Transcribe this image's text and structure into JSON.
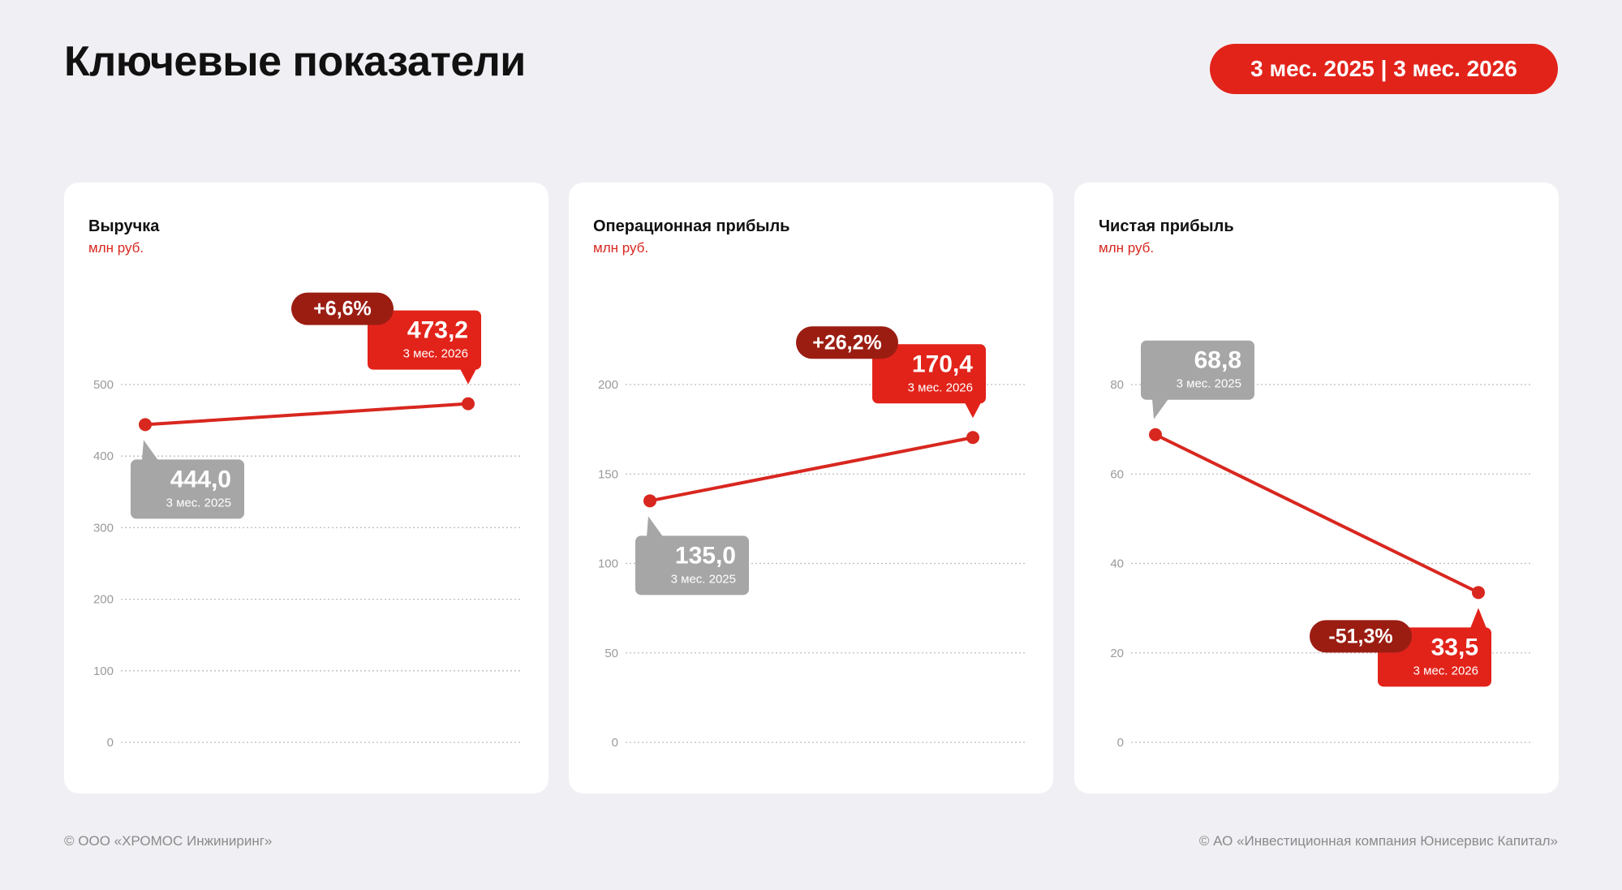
{
  "header": {
    "title": "Ключевые показатели",
    "period": "3 мес. 2025 | 3 мес. 2026"
  },
  "colors": {
    "accent": "#E2231A",
    "change_badge": "#9B1D12",
    "prior_callout": "#A6A6A6",
    "line": "#D8271F"
  },
  "chart_data": [
    {
      "type": "line",
      "title": "Выручка",
      "ylabel": "млн руб.",
      "ylim": [
        0,
        500
      ],
      "yticks": [
        0,
        100,
        200,
        300,
        400,
        500
      ],
      "ytick_labels": [
        "0",
        "100",
        "200",
        "300",
        "400",
        "500"
      ],
      "grid": true,
      "x": [
        "3 мес. 2025",
        "3 мес. 2026"
      ],
      "values": [
        444.0,
        473.2
      ],
      "value_labels": [
        "444,0",
        "473,2"
      ],
      "change": "+6,6%"
    },
    {
      "type": "line",
      "title": "Операционная прибыль",
      "ylabel": "млн руб.",
      "ylim": [
        0,
        200
      ],
      "yticks": [
        0,
        50,
        100,
        150,
        200
      ],
      "ytick_labels": [
        "0",
        "50",
        "100",
        "150",
        "200"
      ],
      "grid": true,
      "x": [
        "3 мес. 2025",
        "3 мес. 2026"
      ],
      "values": [
        135.0,
        170.4
      ],
      "value_labels": [
        "135,0",
        "170,4"
      ],
      "change": "+26,2%"
    },
    {
      "type": "line",
      "title": "Чистая прибыль",
      "ylabel": "млн руб.",
      "ylim": [
        0,
        80
      ],
      "yticks": [
        0,
        20,
        40,
        60,
        80
      ],
      "ytick_labels": [
        "0",
        "20",
        "40",
        "60",
        "80"
      ],
      "grid": true,
      "x": [
        "3 мес. 2025",
        "3 мес. 2026"
      ],
      "values": [
        68.8,
        33.5
      ],
      "value_labels": [
        "68,8",
        "33,5"
      ],
      "change": "-51,3%"
    }
  ],
  "footer": {
    "left": "© ООО «ХРОМОС Инжиниринг»",
    "right": "© АО «Инвестиционная компания Юнисервис Капитал»"
  }
}
